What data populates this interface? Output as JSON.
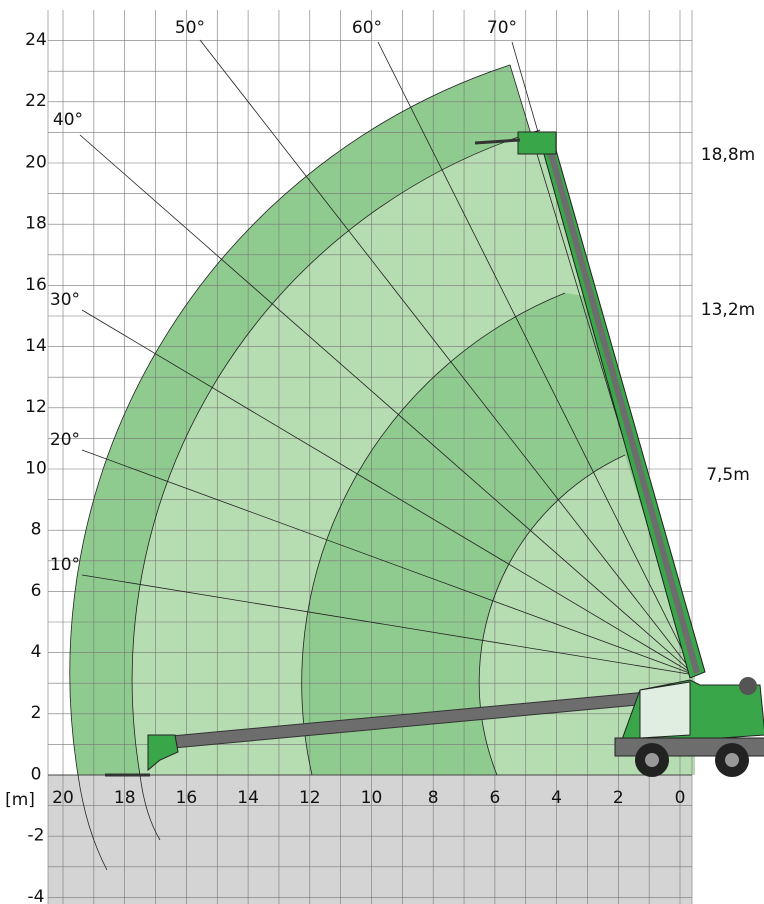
{
  "y_axis_labels": [
    "24",
    "22",
    "20",
    "18",
    "16",
    "14",
    "12",
    "10",
    "8",
    "6",
    "4",
    "2",
    "0",
    "-2",
    "-4"
  ],
  "x_axis_labels": [
    "20",
    "18",
    "16",
    "14",
    "12",
    "10",
    "8",
    "6",
    "4",
    "2",
    "0"
  ],
  "unit_label": "[m]",
  "angle_labels": [
    "10°",
    "20°",
    "30°",
    "40°",
    "50°",
    "60°",
    "70°"
  ],
  "height_labels": [
    "18,8m",
    "13,2m",
    "7,5m"
  ]
}
